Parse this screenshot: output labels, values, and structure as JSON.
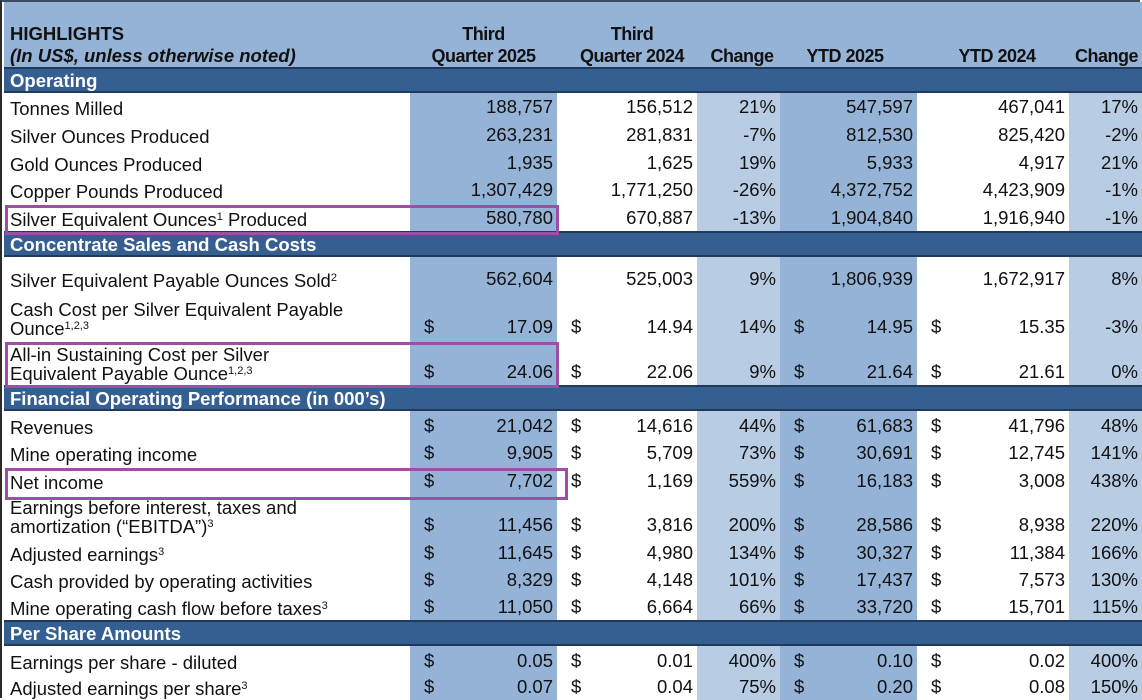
{
  "header": {
    "title": "HIGHLIGHTS",
    "subtitle": "(In US$, unless otherwise noted)",
    "columns": [
      {
        "line1": "Third",
        "line2": "Quarter 2025"
      },
      {
        "line1": "Third",
        "line2": "Quarter 2024"
      },
      {
        "line1": "",
        "line2": "Change"
      },
      {
        "line1": "",
        "line2": "YTD 2025"
      },
      {
        "line1": "",
        "line2": "YTD 2024"
      },
      {
        "line1": "",
        "line2": "Change"
      }
    ]
  },
  "currency_symbol": "$",
  "sections": [
    {
      "title": "Operating",
      "rows": [
        {
          "label": "Tonnes Milled",
          "sup": "",
          "q25": "188,757",
          "q24": "156,512",
          "ch1": "21%",
          "y25": "547,597",
          "y24": "467,041",
          "ch2": "17%",
          "dollar": false
        },
        {
          "label": "Silver Ounces Produced",
          "sup": "",
          "q25": "263,231",
          "q24": "281,831",
          "ch1": "-7%",
          "y25": "812,530",
          "y24": "825,420",
          "ch2": "-2%",
          "dollar": false
        },
        {
          "label": "Gold Ounces Produced",
          "sup": "",
          "q25": "1,935",
          "q24": "1,625",
          "ch1": "19%",
          "y25": "5,933",
          "y24": "4,917",
          "ch2": "21%",
          "dollar": false
        },
        {
          "label": "Copper Pounds Produced",
          "sup": "",
          "q25": "1,307,429",
          "q24": "1,771,250",
          "ch1": "-26%",
          "y25": "4,372,752",
          "y24": "4,423,909",
          "ch2": "-1%",
          "dollar": false
        },
        {
          "label": "Silver Equivalent Ounces",
          "sup": "1",
          "label_suffix": " Produced",
          "q25": "580,780",
          "q24": "670,887",
          "ch1": "-13%",
          "y25": "1,904,840",
          "y24": "1,916,940",
          "ch2": "-1%",
          "dollar": false,
          "highlighted": true
        }
      ]
    },
    {
      "title": "Concentrate Sales and Cash Costs",
      "rows": [
        {
          "label": "Silver Equivalent Payable Ounces Sold",
          "sup": "2",
          "q25": "562,604",
          "q24": "525,003",
          "ch1": "9%",
          "y25": "1,806,939",
          "y24": "1,672,917",
          "ch2": "8%",
          "dollar": false
        },
        {
          "label": "Cash Cost per Silver Equivalent Payable",
          "label2": "Ounce",
          "sup": "1,2,3",
          "q25": "17.09",
          "q24": "14.94",
          "ch1": "14%",
          "y25": "14.95",
          "y24": "15.35",
          "ch2": "-3%",
          "dollar": true
        },
        {
          "label": "All-in Sustaining Cost per Silver",
          "label2": "Equivalent Payable Ounce",
          "sup": "1,2,3",
          "q25": "24.06",
          "q24": "22.06",
          "ch1": "9%",
          "y25": "21.64",
          "y24": "21.61",
          "ch2": "0%",
          "dollar": true,
          "highlighted": true
        }
      ]
    },
    {
      "title": "Financial Operating Performance (in 000’s)",
      "rows": [
        {
          "label": "Revenues",
          "sup": "",
          "q25": "21,042",
          "q24": "14,616",
          "ch1": "44%",
          "y25": "61,683",
          "y24": "41,796",
          "ch2": "48%",
          "dollar": true
        },
        {
          "label": "Mine operating income",
          "sup": "",
          "q25": "9,905",
          "q24": "5,709",
          "ch1": "73%",
          "y25": "30,691",
          "y24": "12,745",
          "ch2": "141%",
          "dollar": true
        },
        {
          "label": "Net income",
          "sup": "",
          "q25": "7,702",
          "q24": "1,169",
          "ch1": "559%",
          "y25": "16,183",
          "y24": "3,008",
          "ch2": "438%",
          "dollar": true,
          "highlighted": true
        },
        {
          "label": "Earnings before interest, taxes and",
          "label2": "amortization (“EBITDA”)",
          "sup": "3",
          "q25": "11,456",
          "q24": "3,816",
          "ch1": "200%",
          "y25": "28,586",
          "y24": "8,938",
          "ch2": "220%",
          "dollar": true
        },
        {
          "label": "Adjusted earnings",
          "sup": "3",
          "q25": "11,645",
          "q24": "4,980",
          "ch1": "134%",
          "y25": "30,327",
          "y24": "11,384",
          "ch2": "166%",
          "dollar": true
        },
        {
          "label": "Cash provided by operating activities",
          "sup": "",
          "q25": "8,329",
          "q24": "4,148",
          "ch1": "101%",
          "y25": "17,437",
          "y24": "7,573",
          "ch2": "130%",
          "dollar": true
        },
        {
          "label": "Mine operating cash flow before taxes",
          "sup": "3",
          "q25": "11,050",
          "q24": "6,664",
          "ch1": "66%",
          "y25": "33,720",
          "y24": "15,701",
          "ch2": "115%",
          "dollar": true
        }
      ]
    },
    {
      "title": "Per Share Amounts",
      "rows": [
        {
          "label": "Earnings per share - diluted",
          "sup": "",
          "q25": "0.05",
          "q24": "0.01",
          "ch1": "400%",
          "y25": "0.10",
          "y24": "0.02",
          "ch2": "400%",
          "dollar": true
        },
        {
          "label": "Adjusted earnings per share",
          "sup": "3",
          "q25": "0.07",
          "q24": "0.04",
          "ch1": "75%",
          "y25": "0.20",
          "y24": "0.08",
          "ch2": "150%",
          "dollar": true
        }
      ]
    }
  ],
  "colors": {
    "header_bg": "#95B3D7",
    "section_bg": "#365F91",
    "current_col_bg": "#95B3D7",
    "change_col_bg": "#B8CCE4",
    "highlight_border": "#9B4FA5"
  }
}
